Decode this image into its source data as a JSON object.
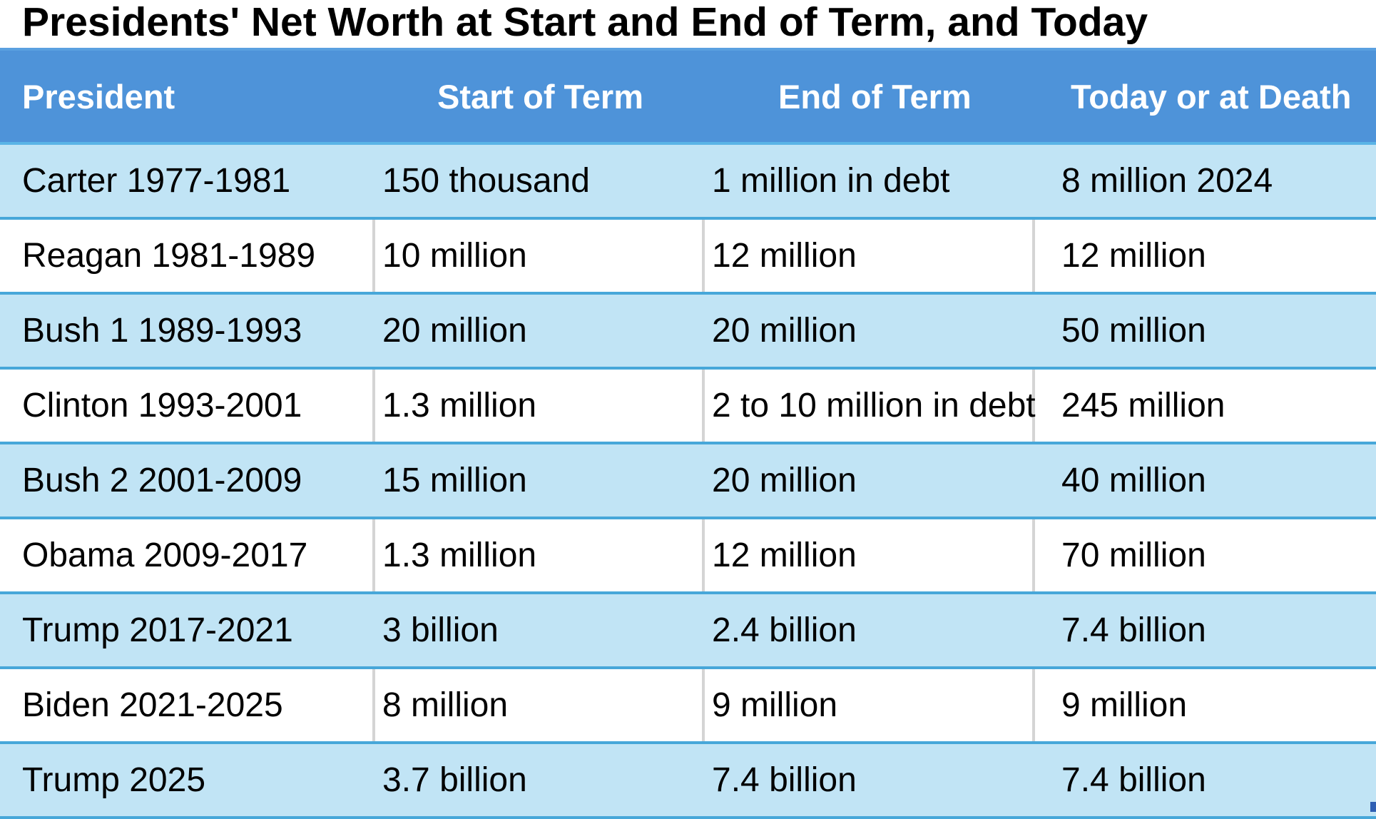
{
  "chart_data": {
    "type": "table",
    "title": "Presidents' Net Worth at Start and End of Term, and Today",
    "columns": [
      "President",
      "Start of Term",
      "End of Term",
      "Today or at Death"
    ],
    "rows": [
      [
        "Carter 1977-1981",
        "150 thousand",
        "1 million in debt",
        "8 million 2024"
      ],
      [
        "Reagan 1981-1989",
        "10 million",
        "12 million",
        "12 million"
      ],
      [
        "Bush 1 1989-1993",
        "20 million",
        "20 million",
        "50 million"
      ],
      [
        "Clinton 1993-2001",
        "1.3 million",
        "2 to 10 million in debt",
        "245 million"
      ],
      [
        "Bush 2 2001-2009",
        "15 million",
        "20 million",
        "40 million"
      ],
      [
        "Obama 2009-2017",
        "1.3 million",
        "12 million",
        "70 million"
      ],
      [
        "Trump 2017-2021",
        "3 billion",
        "2.4 billion",
        "7.4 billion"
      ],
      [
        "Biden 2021-2025",
        "8 million",
        "9 million",
        "9 million"
      ],
      [
        "Trump 2025",
        "3.7 billion",
        "7.4 billion",
        "7.4 billion"
      ]
    ],
    "colors": {
      "header_background": "#4e93d9",
      "header_text": "#ffffff",
      "band_shaded": "#c1e4f5",
      "band_plain": "#ffffff",
      "row_rule": "#47a7d9"
    }
  }
}
